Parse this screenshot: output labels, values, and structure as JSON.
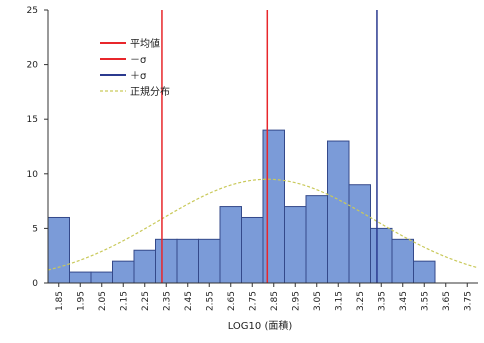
{
  "chart_data": {
    "type": "bar",
    "title": "",
    "xlabel": "LOG10 (面積)",
    "ylabel": "",
    "ylim": [
      0,
      25
    ],
    "yticks": [
      0,
      5,
      10,
      15,
      20,
      25
    ],
    "x_ticks": [
      "1.85",
      "1.95",
      "2.05",
      "2.15",
      "2.25",
      "2.35",
      "2.45",
      "2.55",
      "2.65",
      "2.75",
      "2.85",
      "2.95",
      "3.05",
      "3.15",
      "3.25",
      "3.35",
      "3.45",
      "3.55",
      "3.65",
      "3.75"
    ],
    "bins": [
      {
        "start": 1.8,
        "end": 1.9,
        "count": 6
      },
      {
        "start": 1.9,
        "end": 2.0,
        "count": 1
      },
      {
        "start": 2.0,
        "end": 2.1,
        "count": 1
      },
      {
        "start": 2.1,
        "end": 2.2,
        "count": 2
      },
      {
        "start": 2.2,
        "end": 2.3,
        "count": 3
      },
      {
        "start": 2.3,
        "end": 2.4,
        "count": 4
      },
      {
        "start": 2.4,
        "end": 2.5,
        "count": 4
      },
      {
        "start": 2.5,
        "end": 2.6,
        "count": 4
      },
      {
        "start": 2.6,
        "end": 2.7,
        "count": 7
      },
      {
        "start": 2.7,
        "end": 2.8,
        "count": 6
      },
      {
        "start": 2.8,
        "end": 2.9,
        "count": 14
      },
      {
        "start": 2.9,
        "end": 3.0,
        "count": 7
      },
      {
        "start": 3.0,
        "end": 3.1,
        "count": 8
      },
      {
        "start": 3.1,
        "end": 3.2,
        "count": 13
      },
      {
        "start": 3.2,
        "end": 3.3,
        "count": 9
      },
      {
        "start": 3.3,
        "end": 3.4,
        "count": 5
      },
      {
        "start": 3.4,
        "end": 3.5,
        "count": 4
      },
      {
        "start": 3.5,
        "end": 3.6,
        "count": 2
      }
    ],
    "mean": 2.82,
    "minus_sigma": 2.33,
    "plus_sigma": 3.33,
    "normal_curve": {
      "mean": 2.82,
      "sd": 0.5,
      "peak": 9.5
    },
    "legend": [
      {
        "label": "平均値",
        "color": "#e8262b",
        "style": "solid"
      },
      {
        "label": "－σ",
        "color": "#e8262b",
        "style": "solid"
      },
      {
        "label": "＋σ",
        "color": "#2b3a8f",
        "style": "solid"
      },
      {
        "label": "正規分布",
        "color": "#c9c95a",
        "style": "dashed"
      }
    ],
    "legend_position": "top-left",
    "grid": false,
    "bar_color": "#7b9bd8",
    "bar_edge": "#34498a"
  }
}
